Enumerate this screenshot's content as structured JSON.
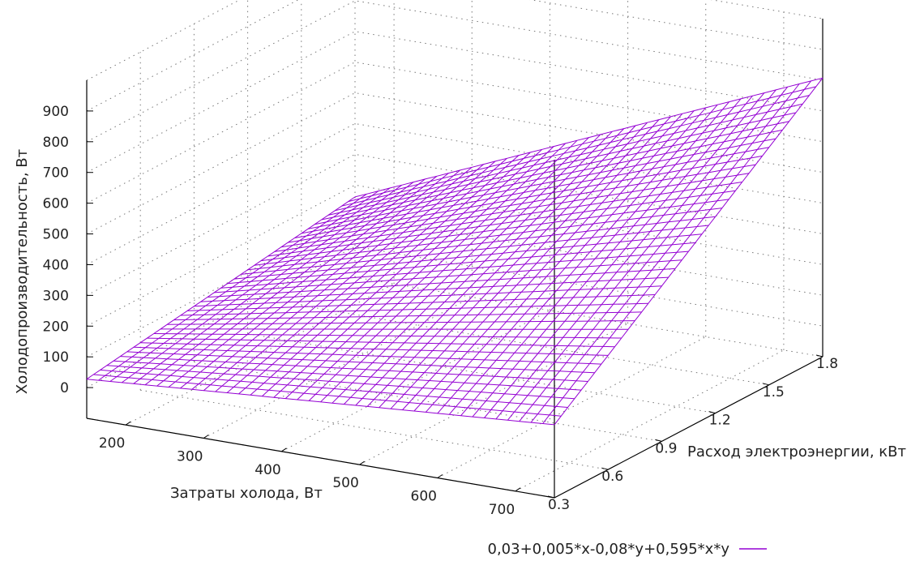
{
  "chart_data": {
    "type": "surface",
    "xlabel": "Затраты холода, Вт",
    "ylabel": "Расход электроэнергии, кВт",
    "zlabel": "Холодопроизводительность, Вт",
    "x_ticks": [
      "200",
      "300",
      "400",
      "500",
      "600",
      "700"
    ],
    "y_ticks": [
      "0.3",
      "0.6",
      "0.9",
      "1.2",
      "1.5",
      "1.8"
    ],
    "z_ticks": [
      "0",
      "100",
      "200",
      "300",
      "400",
      "500",
      "600",
      "700",
      "800",
      "900"
    ],
    "xlim": [
      150,
      750
    ],
    "ylim": [
      0.3,
      1.8
    ],
    "zlim": [
      -100,
      1000
    ],
    "grid": true,
    "legend_position": "bottom-right",
    "series": [
      {
        "name": "0,03+0,005*x-0,08*y+0,595*x*y",
        "color": "#9400d3",
        "formula": {
          "c0": 0.03,
          "cx": 0.005,
          "cy": -0.08,
          "cxy": 0.595
        }
      }
    ]
  }
}
